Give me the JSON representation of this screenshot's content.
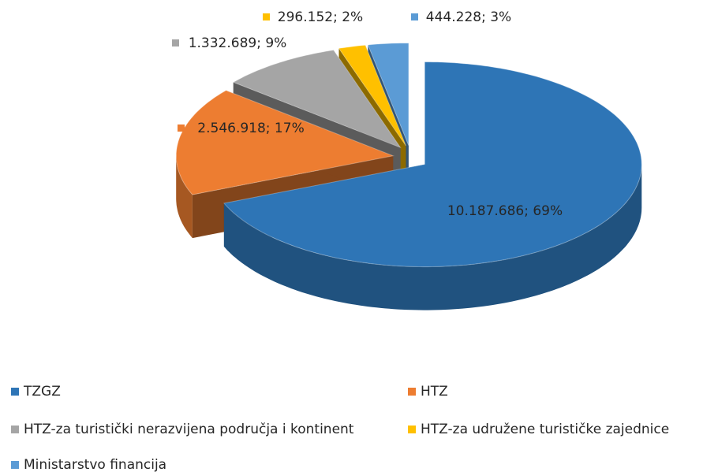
{
  "chart_data": {
    "type": "pie",
    "categories": [
      "TZGZ",
      "HTZ",
      "HTZ-za turistički nerazvijena područja i kontinent",
      "HTZ-za udružene turističke zajednice",
      "Ministarstvo financija"
    ],
    "values": [
      10187686,
      2546918,
      1332689,
      296152,
      444228
    ],
    "value_labels": [
      "10.187.686; 69%",
      "2.546.918; 17%",
      "1.332.689; 9%",
      "296.152; 2%",
      "444.228; 3%"
    ],
    "colors": [
      "#2e75b6",
      "#ed7d31",
      "#a5a5a5",
      "#ffc000",
      "#5b9bd5"
    ],
    "legend": "bottom"
  }
}
